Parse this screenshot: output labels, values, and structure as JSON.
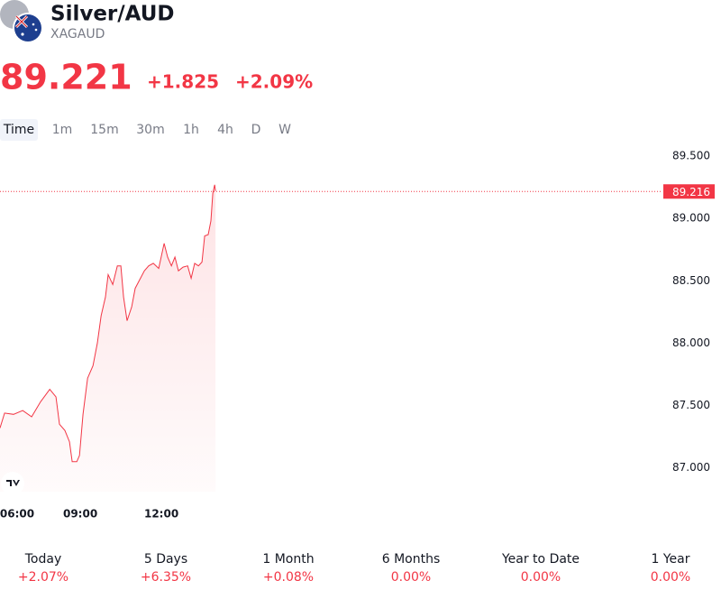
{
  "header": {
    "title": "Silver/AUD",
    "symbol": "XAGAUD",
    "price": "89.221",
    "change": "+1.825",
    "change_percent": "+2.09%"
  },
  "intervals": [
    "Time",
    "1m",
    "15m",
    "30m",
    "1h",
    "4h",
    "D",
    "W"
  ],
  "chart_data": {
    "type": "line",
    "color": "#f23645",
    "x": [
      6.03,
      6.2,
      6.53,
      6.87,
      7.2,
      7.53,
      7.87,
      8.1,
      8.23,
      8.43,
      8.6,
      8.7,
      8.87,
      8.97,
      9.1,
      9.27,
      9.47,
      9.63,
      9.77,
      9.93,
      10.03,
      10.2,
      10.37,
      10.5,
      10.6,
      10.73,
      10.9,
      11.03,
      11.2,
      11.37,
      11.53,
      11.7,
      11.9,
      12.1,
      12.23,
      12.37,
      12.5,
      12.63,
      12.8,
      12.97,
      13.1,
      13.23,
      13.37,
      13.5,
      13.6,
      13.73,
      13.83,
      13.9,
      13.97,
      14.0
    ],
    "values": [
      87.32,
      87.44,
      87.43,
      87.46,
      87.41,
      87.53,
      87.63,
      87.57,
      87.35,
      87.3,
      87.21,
      87.05,
      87.05,
      87.1,
      87.43,
      87.72,
      87.82,
      88.0,
      88.22,
      88.37,
      88.55,
      88.47,
      88.62,
      88.62,
      88.37,
      88.18,
      88.29,
      88.44,
      88.51,
      88.58,
      88.62,
      88.64,
      88.6,
      88.8,
      88.69,
      88.62,
      88.69,
      88.58,
      88.61,
      88.62,
      88.52,
      88.64,
      88.62,
      88.65,
      88.86,
      88.87,
      88.98,
      89.2,
      89.27,
      89.22
    ],
    "xlim": [
      6.03,
      30.53
    ],
    "xticks": [
      {
        "value": 6,
        "label": "06:00"
      },
      {
        "value": 9,
        "label": "09:00"
      },
      {
        "value": 12,
        "label": "12:00"
      }
    ],
    "ylim": [
      86.81,
      89.594
    ],
    "yticks": [
      {
        "value": 87,
        "label": "87.000"
      },
      {
        "value": 87.5,
        "label": "87.500"
      },
      {
        "value": 88,
        "label": "88.000"
      },
      {
        "value": 88.5,
        "label": "88.500"
      },
      {
        "value": 89,
        "label": "89.000"
      },
      {
        "value": 89.5,
        "label": "89.500"
      }
    ],
    "last_price": 89.216
  },
  "performance": [
    {
      "label": "Today",
      "value": "+2.07%"
    },
    {
      "label": "5 Days",
      "value": "+6.35%"
    },
    {
      "label": "1 Month",
      "value": "+0.08%"
    },
    {
      "label": "6 Months",
      "value": "0.00%"
    },
    {
      "label": "Year to Date",
      "value": "0.00%"
    },
    {
      "label": "1 Year",
      "value": "0.00%"
    }
  ]
}
